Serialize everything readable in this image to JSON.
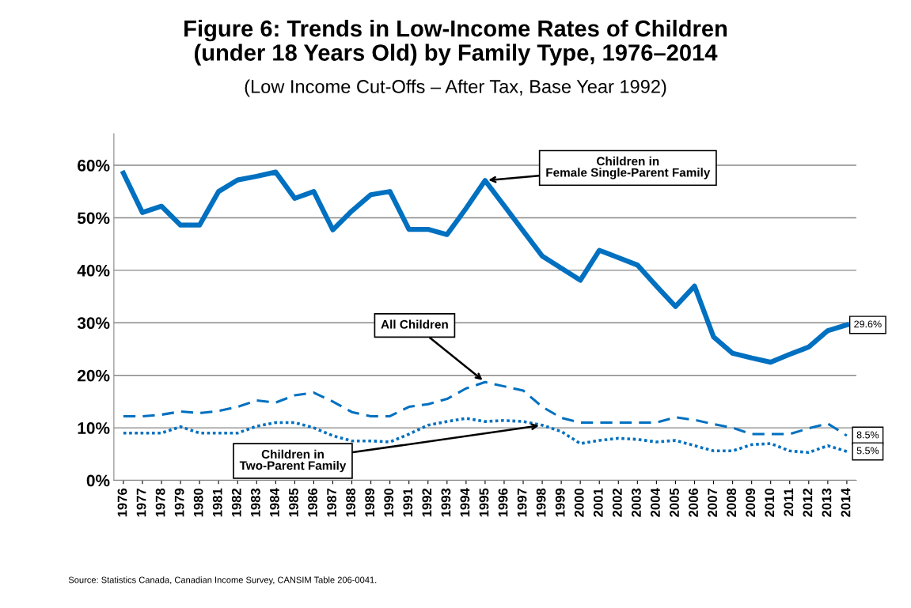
{
  "chart_data": {
    "type": "line",
    "title": "Figure 6: Trends in Low-Income Rates of Children\n(under 18 Years Old) by Family Type, 1976–2014",
    "subtitle": "(Low Income Cut-Offs – After Tax, Base Year 1992)",
    "categories": [
      "1976",
      "1977",
      "1978",
      "1979",
      "1980",
      "1981",
      "1982",
      "1983",
      "1984",
      "1985",
      "1986",
      "1987",
      "1988",
      "1989",
      "1990",
      "1991",
      "1992",
      "1993",
      "1994",
      "1995",
      "1996",
      "1997",
      "1998",
      "1999",
      "2000",
      "2001",
      "2002",
      "2003",
      "2004",
      "2005",
      "2006",
      "2007",
      "2008",
      "2009",
      "2010",
      "2011",
      "2012",
      "2013",
      "2014"
    ],
    "series": [
      {
        "color": "#0070c0",
        "line_style": "solid",
        "values": [
          58.5,
          51.0,
          52.2,
          48.6,
          48.6,
          55.0,
          57.2,
          57.9,
          58.7,
          53.7,
          55.0,
          47.7,
          51.3,
          54.4,
          55.0,
          47.8,
          47.8,
          46.8,
          51.8,
          57.1,
          52.3,
          47.5,
          42.7,
          40.4,
          38.1,
          43.8,
          42.4,
          41.0,
          37.0,
          33.1,
          37.0,
          27.3,
          24.2,
          23.3,
          22.5,
          24.0,
          25.4,
          28.5,
          29.6
        ],
        "value_labels": [
          null,
          null,
          null,
          null,
          null,
          null,
          null,
          null,
          null,
          null,
          null,
          null,
          null,
          null,
          null,
          null,
          null,
          null,
          null,
          null,
          null,
          null,
          null,
          null,
          null,
          null,
          null,
          null,
          null,
          null,
          null,
          null,
          null,
          null,
          null,
          null,
          null,
          null,
          "29.6%"
        ]
      },
      {
        "color": "#0070c0",
        "line_style": "dashed",
        "values": [
          12.2,
          12.2,
          12.5,
          13.1,
          12.8,
          13.2,
          14.0,
          15.2,
          14.8,
          16.2,
          16.7,
          15.0,
          13.0,
          12.2,
          12.2,
          14.0,
          14.5,
          15.5,
          17.5,
          18.7,
          17.9,
          17.1,
          14.0,
          11.9,
          11.0,
          11.0,
          11.0,
          11.0,
          11.0,
          12.0,
          11.5,
          10.7,
          10.0,
          8.8,
          8.8,
          8.8,
          9.9,
          10.8,
          8.5
        ],
        "value_labels": [
          null,
          null,
          null,
          null,
          null,
          null,
          null,
          null,
          null,
          null,
          null,
          null,
          null,
          null,
          null,
          null,
          null,
          null,
          null,
          null,
          null,
          null,
          null,
          null,
          null,
          null,
          null,
          null,
          null,
          null,
          null,
          null,
          null,
          null,
          null,
          null,
          null,
          null,
          "8.5%"
        ]
      },
      {
        "color": "#0070c0",
        "line_style": "dotted",
        "values": [
          9.0,
          9.0,
          9.0,
          10.2,
          9.0,
          9.0,
          9.0,
          10.3,
          11.0,
          11.0,
          10.0,
          8.5,
          7.5,
          7.5,
          7.3,
          8.8,
          10.5,
          11.2,
          11.8,
          11.2,
          11.4,
          11.2,
          10.5,
          9.3,
          7.0,
          7.6,
          8.0,
          7.8,
          7.3,
          7.6,
          6.6,
          5.6,
          5.6,
          6.8,
          7.0,
          5.6,
          5.3,
          6.6,
          5.5
        ],
        "value_labels": [
          null,
          null,
          null,
          null,
          null,
          null,
          null,
          null,
          null,
          null,
          null,
          null,
          null,
          null,
          null,
          null,
          null,
          null,
          null,
          null,
          null,
          null,
          null,
          null,
          null,
          null,
          null,
          null,
          null,
          null,
          null,
          null,
          null,
          null,
          null,
          null,
          null,
          null,
          "5.5%"
        ]
      }
    ],
    "ylim": [
      0,
      66
    ],
    "yticks": [
      {
        "value": 0,
        "label": "0%"
      },
      {
        "value": 10,
        "label": "10%"
      },
      {
        "value": 20,
        "label": "20%"
      },
      {
        "value": 30,
        "label": "30%"
      },
      {
        "value": 40,
        "label": "40%"
      },
      {
        "value": 50,
        "label": "50%"
      },
      {
        "value": 60,
        "label": "60%"
      }
    ],
    "grid": "y",
    "legend": false,
    "marker": "none",
    "annotations": [
      {
        "text": "Children in\nFemale Single-Parent Family",
        "x": "1995",
        "y": 57.1
      },
      {
        "text": "All Children",
        "x": "1995",
        "y": 18.7
      },
      {
        "text": "Children in\nTwo-Parent Family",
        "x": "1998",
        "y": 10.5
      },
      "Source: Statistics Canada, Canadian Income Survey, CANSIM Table 206-0041."
    ]
  }
}
